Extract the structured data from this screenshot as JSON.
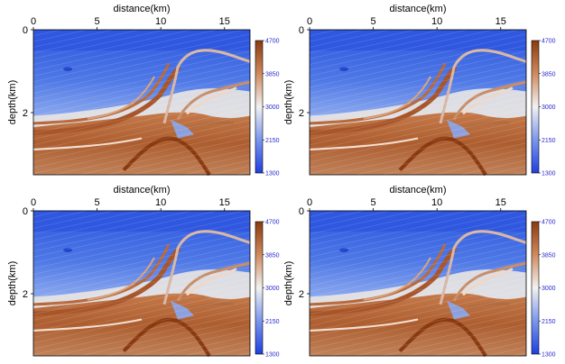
{
  "chart_data": [
    {
      "type": "heatmap",
      "title": "",
      "xlabel": "distance(km)",
      "ylabel": "depth(km)",
      "xlim": [
        0,
        17
      ],
      "ylim": [
        3.5,
        0
      ],
      "x_ticks": [
        0,
        5,
        10,
        15
      ],
      "y_ticks": [
        0,
        2
      ],
      "colorbar": {
        "min": 1300,
        "max": 4700,
        "ticks": [
          1300,
          2150,
          3000,
          3850,
          4700
        ],
        "low_color": "#1f3fe0",
        "mid_color": "#f2f2f2",
        "high_color": "#8a3a10"
      }
    },
    {
      "type": "heatmap",
      "title": "",
      "xlabel": "distance(km)",
      "ylabel": "depth(km)",
      "xlim": [
        0,
        17
      ],
      "ylim": [
        3.5,
        0
      ],
      "x_ticks": [
        0,
        5,
        10,
        15
      ],
      "y_ticks": [
        0,
        2
      ],
      "colorbar": {
        "min": 1300,
        "max": 4700,
        "ticks": [
          1300,
          2150,
          3000,
          3850,
          4700
        ],
        "low_color": "#1f3fe0",
        "mid_color": "#f2f2f2",
        "high_color": "#8a3a10"
      }
    },
    {
      "type": "heatmap",
      "title": "",
      "xlabel": "distance(km)",
      "ylabel": "depth(km)",
      "xlim": [
        0,
        17
      ],
      "ylim": [
        3.5,
        0
      ],
      "x_ticks": [
        0,
        5,
        10,
        15
      ],
      "y_ticks": [
        0,
        2
      ],
      "colorbar": {
        "min": 1300,
        "max": 4700,
        "ticks": [
          1300,
          2150,
          3000,
          3850,
          4700
        ],
        "low_color": "#1f3fe0",
        "mid_color": "#f2f2f2",
        "high_color": "#8a3a10"
      }
    },
    {
      "type": "heatmap",
      "title": "",
      "xlabel": "distance(km)",
      "ylabel": "depth(km)",
      "xlim": [
        0,
        17
      ],
      "ylim": [
        3.5,
        0
      ],
      "x_ticks": [
        0,
        5,
        10,
        15
      ],
      "y_ticks": [
        0,
        2
      ],
      "colorbar": {
        "min": 1300,
        "max": 4700,
        "ticks": [
          1300,
          2150,
          3000,
          3850,
          4700
        ],
        "low_color": "#1f3fe0",
        "mid_color": "#f2f2f2",
        "high_color": "#8a3a10"
      }
    }
  ]
}
